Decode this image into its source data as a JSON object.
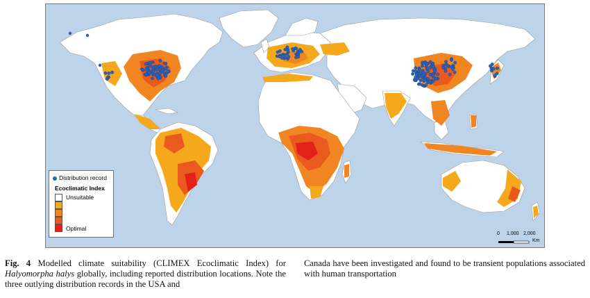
{
  "map": {
    "legend": {
      "distribution_label": "Distribution record",
      "title": "Ecoclimatic Index",
      "unsuitable_label": "Unsuitable",
      "optimal_label": "Optimal",
      "classes": [
        {
          "color": "#ffffff"
        },
        {
          "color": "#f5a81c"
        },
        {
          "color": "#f08522"
        },
        {
          "color": "#ea5a1f"
        },
        {
          "color": "#e32119"
        }
      ]
    },
    "scale": {
      "ticks": [
        "0",
        "1,000",
        "2,000"
      ],
      "unit": "Km"
    },
    "colors": {
      "ocean": "#bcd3ea",
      "land": "#ffffff",
      "border": "#b0b0b0",
      "record": "#2a61b8"
    }
  },
  "caption": {
    "fig_label": "Fig. 4",
    "text_before_species": "Modelled climate suitability (CLIMEX Ecoclimatic Index) for",
    "species": "Halyomorpha halys",
    "text_left_after": "globally, including reported distribution locations. Note the three outlying distribution records in the USA and",
    "text_right": "Canada have been investigated and found to be transient populations associated with human transportation"
  }
}
